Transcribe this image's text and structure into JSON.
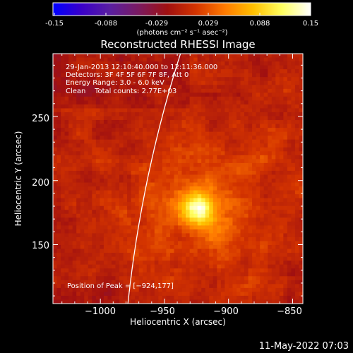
{
  "colorbar": {
    "tick_labels": [
      "-0.15",
      "-0.088",
      "-0.029",
      "0.029",
      "0.088",
      "0.15"
    ],
    "unit_label": "(photons cm⁻² s⁻¹ asec⁻²)",
    "colormap": [
      "#0000ff",
      "#3a00c8",
      "#5a1fa0",
      "#7a1a60",
      "#a01010",
      "#d43400",
      "#ff7a00",
      "#ffc000",
      "#ffff60",
      "#ffffff"
    ]
  },
  "chart_data": {
    "type": "heatmap",
    "title": "Reconstructed RHESSI Image",
    "xlabel": "Heliocentric X (arcsec)",
    "ylabel": "Heliocentric Y (arcsec)",
    "xlim": [
      -1037,
      -842
    ],
    "ylim": [
      104,
      299
    ],
    "xticks": [
      -1000,
      -950,
      -900,
      -850
    ],
    "yticks": [
      150,
      200,
      250
    ],
    "xtick_labels": [
      "−1000",
      "−950",
      "−900",
      "−850"
    ],
    "ytick_labels": [
      "150",
      "200",
      "250"
    ],
    "value_range": [
      -0.15,
      0.15
    ],
    "peak_position": [
      -924,
      177
    ],
    "annotations": [
      "29-Jan-2013 12:10:40.000 to 12:11:36.000",
      "Detectors: 3F 4F 5F 6F 7F 8F, Att 0",
      "Energy Range: 3.0 - 6.0 keV",
      "Clean    Total counts: 2.77E+03"
    ],
    "peak_annotation": "Position of Peak = [−924,177]"
  },
  "footer": {
    "timestamp": "11-May-2022 07:03"
  }
}
